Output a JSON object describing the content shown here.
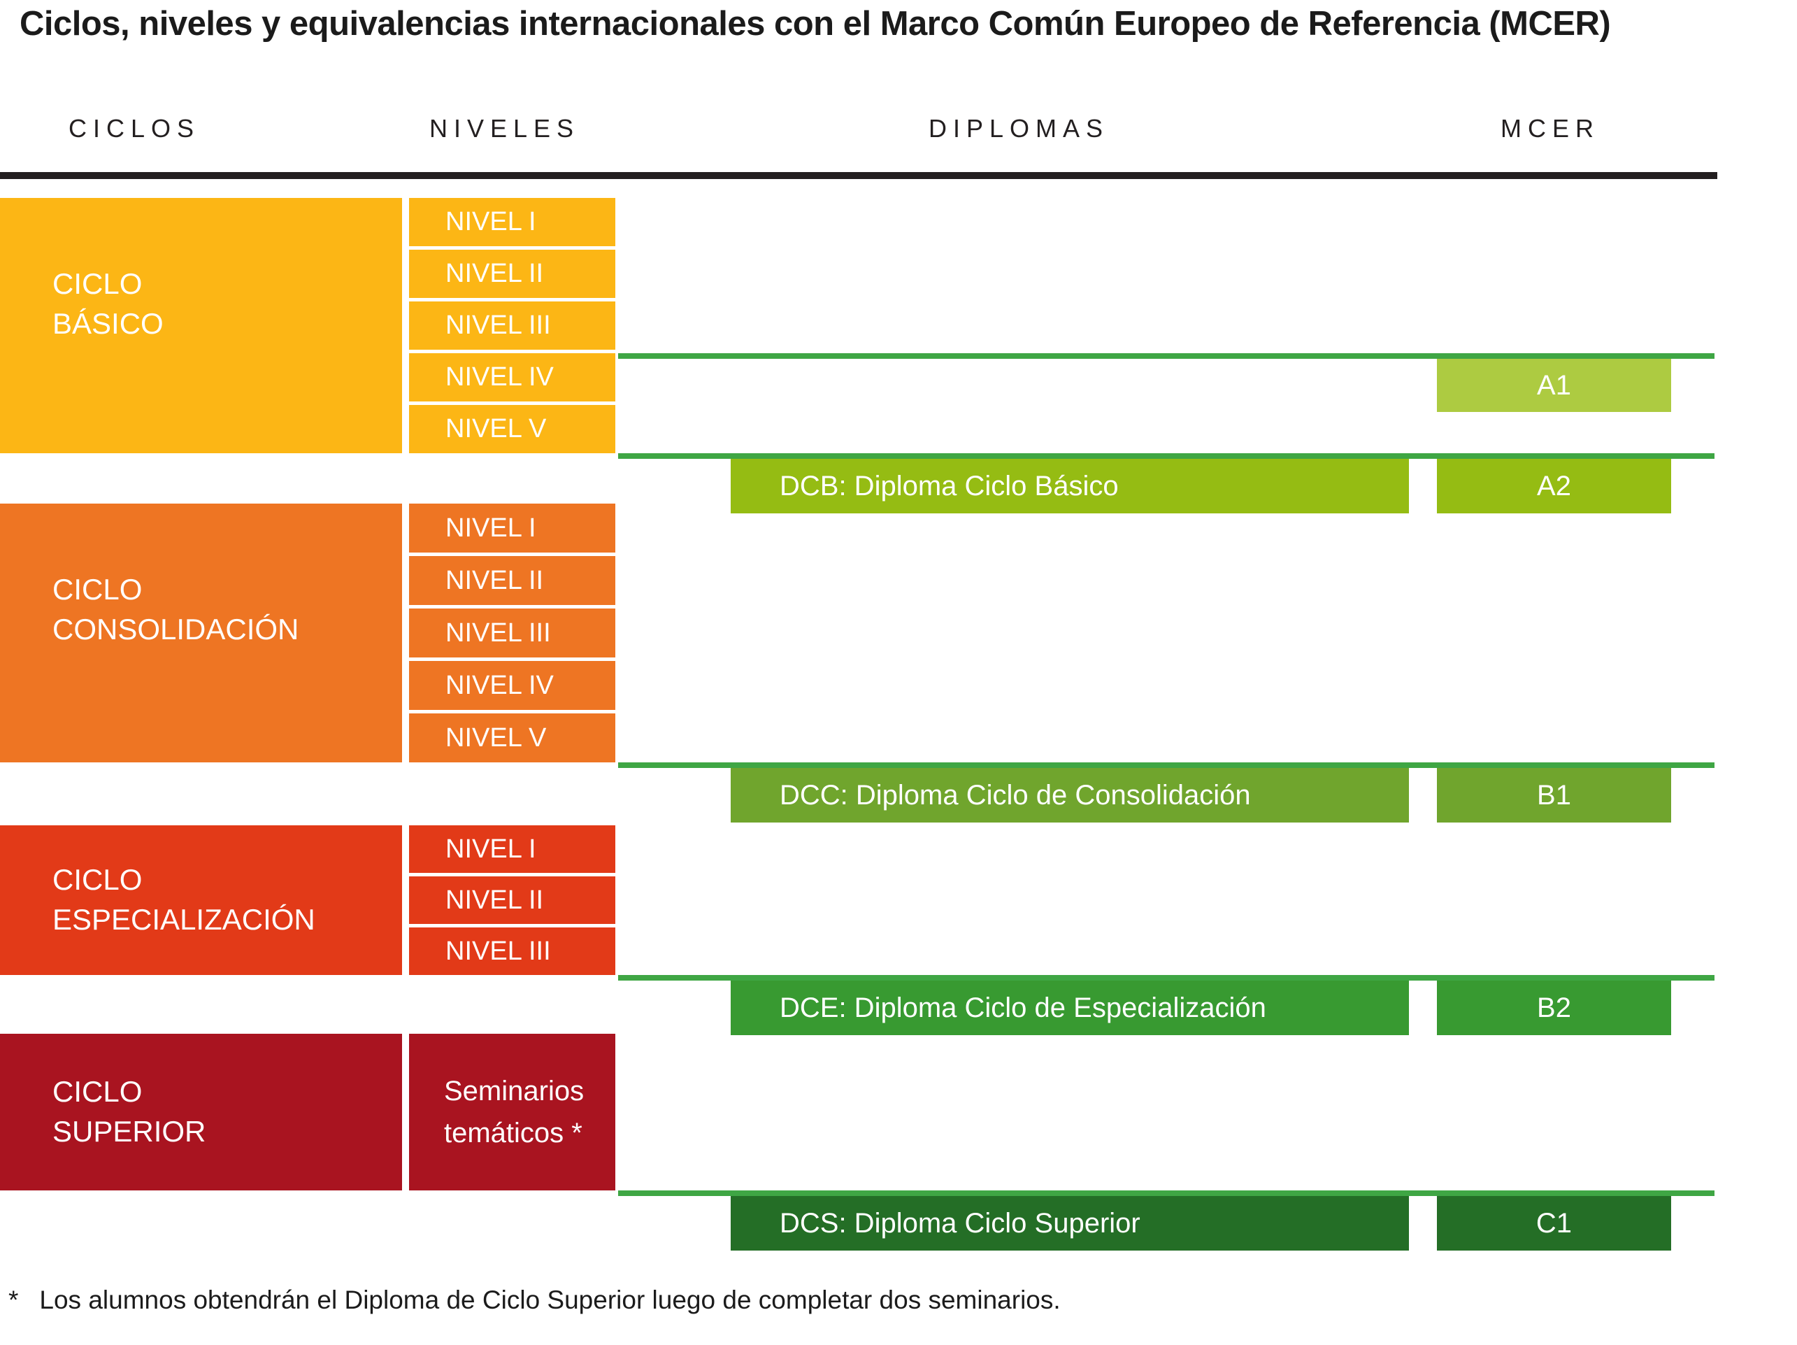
{
  "title": "Ciclos, niveles y equivalencias internacionales con el Marco Común Europeo de Referencia (MCER)",
  "columns": {
    "ciclos": "CICLOS",
    "niveles": "NIVELES",
    "diplomas": "DIPLOMAS",
    "mcer": "MCER"
  },
  "cycles": [
    {
      "label_lines": [
        "CICLO",
        "BÁSICO"
      ],
      "color": "#FCB615",
      "levels": [
        "NIVEL I",
        "NIVEL II",
        "NIVEL III",
        "NIVEL IV",
        "NIVEL V"
      ]
    },
    {
      "label_lines": [
        "CICLO",
        "CONSOLIDACIÓN"
      ],
      "color": "#EE7523",
      "levels": [
        "NIVEL I",
        "NIVEL II",
        "NIVEL III",
        "NIVEL IV",
        "NIVEL V"
      ]
    },
    {
      "label_lines": [
        "CICLO",
        "ESPECIALIZACIÓN"
      ],
      "color": "#E23A18",
      "levels": [
        "NIVEL I",
        "NIVEL II",
        "NIVEL III"
      ]
    },
    {
      "label_lines": [
        "CICLO",
        "SUPERIOR"
      ],
      "color": "#A91420",
      "seminars_lines": [
        "Seminarios",
        "temáticos *"
      ]
    }
  ],
  "equivalences": [
    {
      "mcer": "A1",
      "block_color": "#ADCB41"
    },
    {
      "diploma": "DCB: Diploma Ciclo Básico",
      "mcer": "A2",
      "block_color": "#95BC13"
    },
    {
      "diploma": "DCC: Diploma Ciclo de Consolidación",
      "mcer": "B1",
      "block_color": "#70A52D"
    },
    {
      "diploma": "DCE: Diploma Ciclo de Especialización",
      "mcer": "B2",
      "block_color": "#389A31"
    },
    {
      "diploma": "DCS: Diploma Ciclo Superior",
      "mcer": "C1",
      "block_color": "#246E26"
    }
  ],
  "connector_line_color": "#3FA644",
  "header_rule_color": "#231F20",
  "footnote": {
    "marker": "*",
    "text": "Los alumnos obtendrán el Diploma de Ciclo Superior luego de completar dos seminarios."
  }
}
